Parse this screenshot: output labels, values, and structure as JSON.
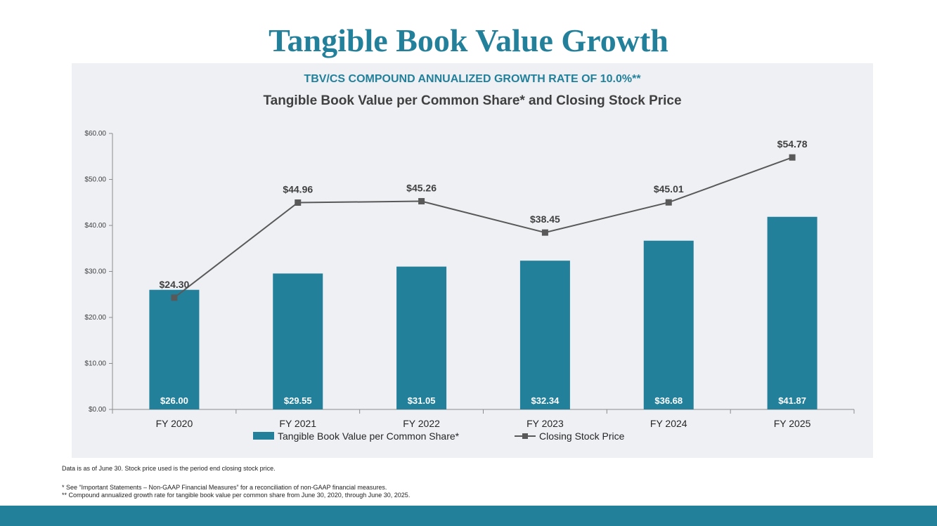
{
  "page_title": "Tangible Book Value Growth",
  "colors": {
    "accent": "#23809b",
    "line": "#595959",
    "panel": "#eef0f4"
  },
  "chart_data": {
    "type": "bar",
    "subtitle": "TBV/CS COMPOUND ANNUALIZED GROWTH RATE OF 10.0%**",
    "title": "Tangible Book Value per Common Share* and Closing Stock Price",
    "categories": [
      "FY 2020",
      "FY 2021",
      "FY 2022",
      "FY 2023",
      "FY 2024",
      "FY 2025"
    ],
    "ylim": [
      0,
      60
    ],
    "yticks": [
      0,
      10,
      20,
      30,
      40,
      50,
      60
    ],
    "ytick_labels": [
      "$0.00",
      "$10.00",
      "$20.00",
      "$30.00",
      "$40.00",
      "$50.00",
      "$60.00"
    ],
    "series": [
      {
        "name": "Tangible Book Value per Common Share*",
        "type": "bar",
        "values": [
          26.0,
          29.55,
          31.05,
          32.34,
          36.68,
          41.87
        ],
        "labels": [
          "$26.00",
          "$29.55",
          "$31.05",
          "$32.34",
          "$36.68",
          "$41.87"
        ]
      },
      {
        "name": "Closing Stock Price",
        "type": "line",
        "values": [
          24.3,
          44.96,
          45.26,
          38.45,
          45.01,
          54.78
        ],
        "labels": [
          "$24.30",
          "$44.96",
          "$45.26",
          "$38.45",
          "$45.01",
          "$54.78"
        ]
      }
    ],
    "legend": "bottom"
  },
  "notes": {
    "data_note": "Data is as of June 30. Stock price used is the period end closing stock price.",
    "note_1": "*  See “Important Statements – Non-GAAP Financial Measures” for a reconciliation of non-GAAP financial measures.",
    "note_2": "** Compound annualized growth rate for tangible book value per common share from June 30, 2020, through June 30, 2025."
  }
}
